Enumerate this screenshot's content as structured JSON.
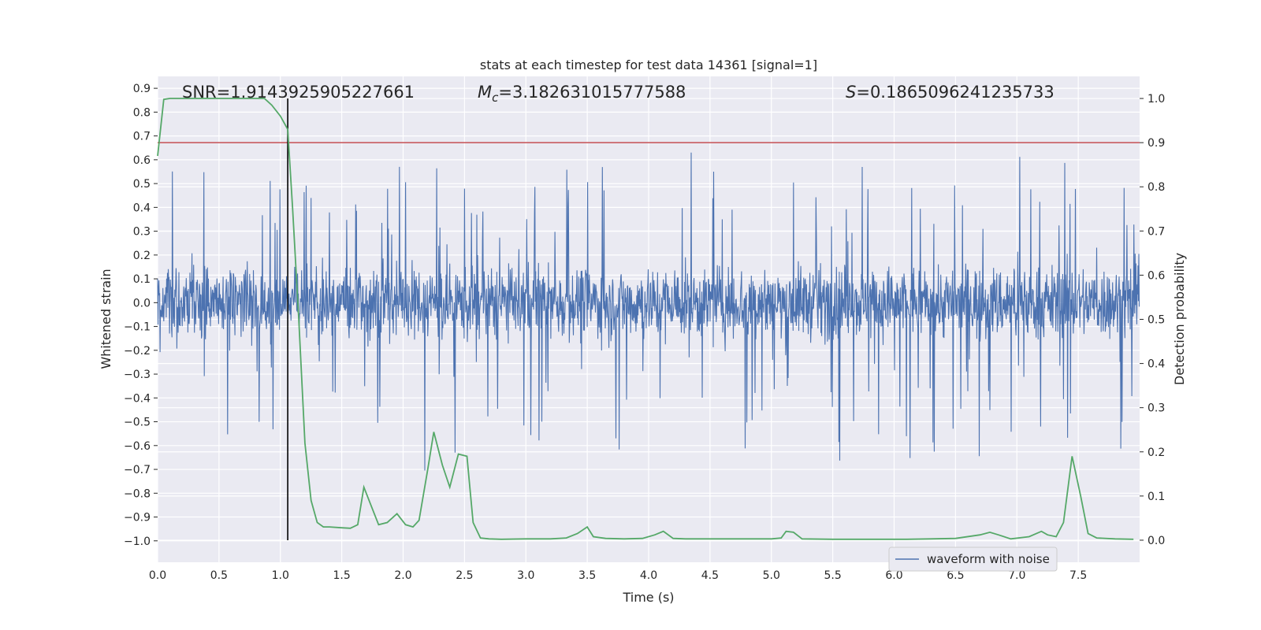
{
  "chart_data": {
    "type": "line",
    "title": "stats at each timestep for test data 14361 [signal=1]",
    "xlabel": "Time (s)",
    "ylabel_left": "Whitened strain",
    "ylabel_right": "Detection probability",
    "xlim": [
      0.0,
      8.0
    ],
    "ylim_left": [
      -1.09,
      0.95
    ],
    "ylim_right": [
      -0.05,
      1.05
    ],
    "x_ticks": [
      "0.0",
      "0.5",
      "1.0",
      "1.5",
      "2.0",
      "2.5",
      "3.0",
      "3.5",
      "4.0",
      "4.5",
      "5.0",
      "5.5",
      "6.0",
      "6.5",
      "7.0",
      "7.5"
    ],
    "y_left_ticks": [
      "0.9",
      "0.8",
      "0.7",
      "0.6",
      "0.5",
      "0.4",
      "0.3",
      "0.2",
      "0.1",
      "0.0",
      "-0.1",
      "-0.2",
      "-0.3",
      "-0.4",
      "-0.5",
      "-0.6",
      "-0.7",
      "-0.8",
      "-0.9",
      "-1.0"
    ],
    "y_right_ticks": [
      "1.0",
      "0.9",
      "0.8",
      "0.7",
      "0.6",
      "0.5",
      "0.4",
      "0.3",
      "0.2",
      "0.1",
      "0.0"
    ],
    "grid": true,
    "legend_position": "lower-right",
    "annotations": {
      "snr": "SNR=1.9143925905227661",
      "mc_symbol": "M",
      "mc_sub": "c",
      "mc_value": "=3.182631015777588",
      "s_symbol": "S",
      "s_value": "=0.1865096241235733"
    },
    "threshold": 0.9,
    "marker_time": 1.06,
    "series": [
      {
        "name": "waveform with noise",
        "axis": "left",
        "color": "#4c72b0",
        "description": "dense whitened strain noise, mostly within ±0.35 with spikes to about ±0.75"
      },
      {
        "axis": "right",
        "color": "#55a868",
        "x": [
          0.0,
          0.05,
          0.1,
          0.2,
          0.3,
          0.4,
          0.5,
          0.6,
          0.7,
          0.8,
          0.87,
          0.93,
          1.0,
          1.06,
          1.1,
          1.15,
          1.2,
          1.25,
          1.3,
          1.35,
          1.4,
          1.5,
          1.57,
          1.63,
          1.68,
          1.73,
          1.8,
          1.87,
          1.95,
          2.02,
          2.08,
          2.13,
          2.2,
          2.25,
          2.32,
          2.38,
          2.45,
          2.52,
          2.57,
          2.63,
          2.7,
          2.8,
          3.0,
          3.2,
          3.33,
          3.42,
          3.5,
          3.55,
          3.65,
          3.8,
          3.95,
          4.05,
          4.12,
          4.2,
          4.3,
          4.45,
          4.6,
          4.8,
          5.0,
          5.08,
          5.12,
          5.18,
          5.25,
          5.5,
          5.8,
          6.1,
          6.3,
          6.5,
          6.7,
          6.78,
          6.85,
          6.95,
          7.1,
          7.2,
          7.25,
          7.32,
          7.38,
          7.45,
          7.52,
          7.58,
          7.65,
          7.8,
          7.95
        ],
        "values": [
          0.87,
          0.998,
          1.0,
          1.0,
          1.0,
          1.0,
          1.0,
          1.0,
          1.0,
          1.0,
          1.0,
          0.985,
          0.96,
          0.93,
          0.75,
          0.5,
          0.22,
          0.09,
          0.04,
          0.03,
          0.03,
          0.028,
          0.027,
          0.035,
          0.12,
          0.085,
          0.035,
          0.04,
          0.06,
          0.035,
          0.03,
          0.045,
          0.16,
          0.245,
          0.17,
          0.12,
          0.195,
          0.19,
          0.04,
          0.005,
          0.003,
          0.002,
          0.003,
          0.003,
          0.005,
          0.015,
          0.03,
          0.008,
          0.004,
          0.003,
          0.004,
          0.012,
          0.02,
          0.004,
          0.003,
          0.003,
          0.003,
          0.003,
          0.003,
          0.005,
          0.02,
          0.018,
          0.003,
          0.002,
          0.002,
          0.002,
          0.003,
          0.004,
          0.012,
          0.018,
          0.012,
          0.003,
          0.008,
          0.02,
          0.012,
          0.008,
          0.04,
          0.19,
          0.1,
          0.015,
          0.005,
          0.003,
          0.002
        ]
      },
      {
        "axis": "right",
        "color": "#c44e52",
        "description": "horizontal threshold line at 0.9"
      }
    ]
  }
}
